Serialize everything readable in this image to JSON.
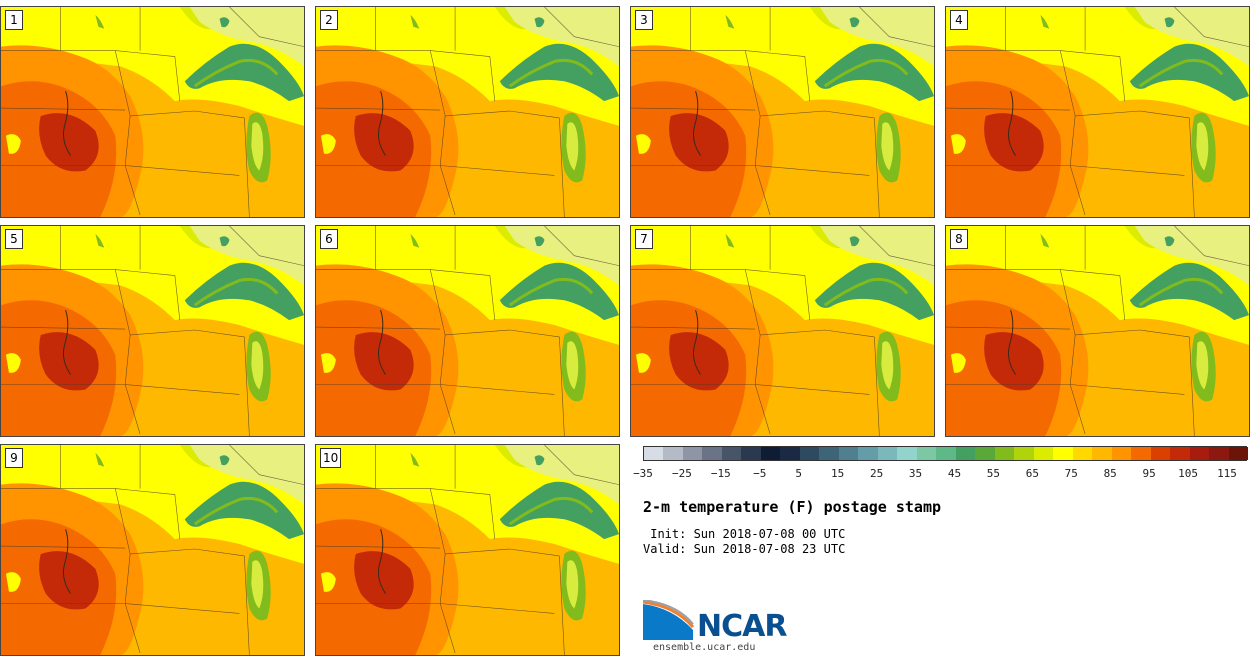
{
  "panels": [
    {
      "label": "1"
    },
    {
      "label": "2"
    },
    {
      "label": "3"
    },
    {
      "label": "4"
    },
    {
      "label": "5"
    },
    {
      "label": "6"
    },
    {
      "label": "7"
    },
    {
      "label": "8"
    },
    {
      "label": "9"
    },
    {
      "label": "10"
    }
  ],
  "colorbar": {
    "colors": [
      "#d8dce4",
      "#b4bac6",
      "#8e96a6",
      "#6a7486",
      "#485468",
      "#2a3850",
      "#101c34",
      "#1a2a44",
      "#2e4a60",
      "#3e6478",
      "#508090",
      "#649ca8",
      "#7ab8bc",
      "#92d4cc",
      "#7cc8a4",
      "#5eb888",
      "#44a060",
      "#5aa838",
      "#82bc1c",
      "#b0d40c",
      "#dcec00",
      "#ffff00",
      "#ffd800",
      "#ffb800",
      "#ff9400",
      "#f56a00",
      "#dc4000",
      "#c42a08",
      "#a81c10",
      "#8c1810",
      "#6c1408"
    ],
    "tick_labels": [
      "−35",
      "−25",
      "−15",
      "−5",
      "5",
      "15",
      "25",
      "35",
      "45",
      "55",
      "65",
      "75",
      "85",
      "95",
      "105",
      "115"
    ]
  },
  "title": "2-m temperature (F) postage stamp",
  "init_line": " Init: Sun 2018-07-08 00 UTC",
  "valid_line": "Valid: Sun 2018-07-08 23 UTC",
  "logo_text": "NCAR",
  "site": "ensemble.ucar.edu",
  "palette": {
    "hot_core": "#c42a08",
    "hot": "#f56a00",
    "warm": "#ff9400",
    "mild": "#ffb800",
    "yellow": "#ffff00",
    "yellow_green": "#dcec00",
    "lake_green": "#44a060",
    "lake_light": "#82bc1c"
  }
}
